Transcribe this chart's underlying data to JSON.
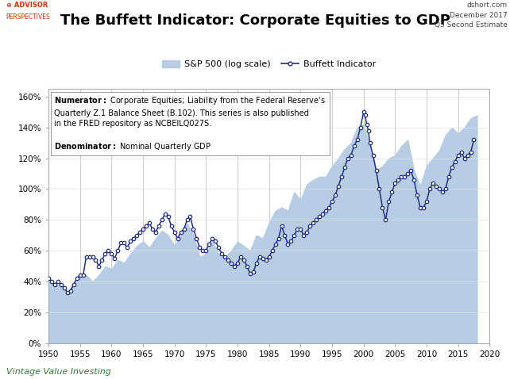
{
  "title": "The Buffett Indicator: Corporate Equities to GDP",
  "title_fontsize": 13,
  "subtitle_right": "dshort.com\nDecember 2017\nQ3 Second Estimate",
  "logo_text_top": "⊕ ADVISOR",
  "logo_text_bot": "PERSPECTIVES",
  "footer_text": "Vintage Value Investing",
  "legend_sp500": "S&P 500 (log scale)",
  "legend_buffett": "Buffett Indicator",
  "sp500_color": "#b8cce4",
  "buffett_color": "#1f3080",
  "vline_color": "#cccccc",
  "background_color": "#ffffff",
  "plot_bg_color": "#ffffff",
  "xlim": [
    1950,
    2020
  ],
  "ylim": [
    0,
    1.65
  ],
  "yticks": [
    0,
    0.2,
    0.4,
    0.6,
    0.8,
    1.0,
    1.2,
    1.4,
    1.6
  ],
  "ytick_labels": [
    "0%",
    "20%",
    "40%",
    "60%",
    "80%",
    "100%",
    "120%",
    "140%",
    "160%"
  ],
  "xticks": [
    1950,
    1955,
    1960,
    1965,
    1970,
    1975,
    1980,
    1985,
    1990,
    1995,
    2000,
    2005,
    2010,
    2015,
    2020
  ],
  "vline_years": [
    1955,
    1960,
    1965,
    1970,
    1975,
    1980,
    1985,
    1990,
    1995,
    2000,
    2005,
    2010,
    2015
  ],
  "sp500_years": [
    1950,
    1951,
    1952,
    1953,
    1954,
    1955,
    1956,
    1957,
    1958,
    1959,
    1960,
    1961,
    1962,
    1963,
    1964,
    1965,
    1966,
    1967,
    1968,
    1969,
    1970,
    1971,
    1972,
    1973,
    1974,
    1975,
    1976,
    1977,
    1978,
    1979,
    1980,
    1981,
    1982,
    1983,
    1984,
    1985,
    1986,
    1987,
    1988,
    1989,
    1990,
    1991,
    1992,
    1993,
    1994,
    1995,
    1996,
    1997,
    1998,
    1999,
    2000,
    2001,
    2002,
    2003,
    2004,
    2005,
    2006,
    2007,
    2008,
    2009,
    2010,
    2011,
    2012,
    2013,
    2014,
    2015,
    2016,
    2017,
    2018
  ],
  "sp500_vals": [
    0.4,
    0.38,
    0.37,
    0.33,
    0.39,
    0.45,
    0.44,
    0.4,
    0.44,
    0.5,
    0.48,
    0.54,
    0.52,
    0.58,
    0.63,
    0.66,
    0.62,
    0.68,
    0.73,
    0.7,
    0.63,
    0.7,
    0.78,
    0.7,
    0.56,
    0.58,
    0.66,
    0.58,
    0.56,
    0.6,
    0.66,
    0.63,
    0.6,
    0.7,
    0.68,
    0.78,
    0.86,
    0.88,
    0.86,
    0.98,
    0.93,
    1.03,
    1.06,
    1.08,
    1.08,
    1.15,
    1.2,
    1.26,
    1.3,
    1.4,
    1.42,
    1.28,
    1.12,
    1.15,
    1.2,
    1.22,
    1.28,
    1.32,
    1.12,
    1.02,
    1.15,
    1.2,
    1.25,
    1.35,
    1.4,
    1.36,
    1.4,
    1.46,
    1.48
  ],
  "buffett_years": [
    1950,
    1950.5,
    1951,
    1951.5,
    1952,
    1952.5,
    1953,
    1953.5,
    1954,
    1954.5,
    1955,
    1955.5,
    1956,
    1956.5,
    1957,
    1957.5,
    1958,
    1958.5,
    1959,
    1959.5,
    1960,
    1960.5,
    1961,
    1961.5,
    1962,
    1962.5,
    1963,
    1963.5,
    1964,
    1964.5,
    1965,
    1965.5,
    1966,
    1966.5,
    1967,
    1967.5,
    1968,
    1968.5,
    1969,
    1969.5,
    1970,
    1970.5,
    1971,
    1971.5,
    1972,
    1972.5,
    1973,
    1973.5,
    1974,
    1974.5,
    1975,
    1975.5,
    1976,
    1976.5,
    1977,
    1977.5,
    1978,
    1978.5,
    1979,
    1979.5,
    1980,
    1980.5,
    1981,
    1981.5,
    1982,
    1982.5,
    1983,
    1983.5,
    1984,
    1984.5,
    1985,
    1985.5,
    1986,
    1986.5,
    1987,
    1987.5,
    1988,
    1988.5,
    1989,
    1989.5,
    1990,
    1990.5,
    1991,
    1991.5,
    1992,
    1992.5,
    1993,
    1993.5,
    1994,
    1994.5,
    1995,
    1995.5,
    1996,
    1996.5,
    1997,
    1997.5,
    1998,
    1998.5,
    1999,
    1999.5,
    2000,
    2000.25,
    2000.5,
    2000.75,
    2001,
    2001.5,
    2002,
    2002.5,
    2003,
    2003.5,
    2004,
    2004.5,
    2005,
    2005.5,
    2006,
    2006.5,
    2007,
    2007.5,
    2008,
    2008.5,
    2009,
    2009.5,
    2010,
    2010.5,
    2011,
    2011.5,
    2012,
    2012.5,
    2013,
    2013.5,
    2014,
    2014.5,
    2015,
    2015.5,
    2016,
    2016.5,
    2017,
    2017.5
  ],
  "buffett_vals": [
    0.42,
    0.4,
    0.38,
    0.4,
    0.38,
    0.36,
    0.33,
    0.34,
    0.38,
    0.42,
    0.44,
    0.44,
    0.56,
    0.56,
    0.56,
    0.54,
    0.5,
    0.54,
    0.58,
    0.6,
    0.58,
    0.55,
    0.6,
    0.65,
    0.65,
    0.62,
    0.66,
    0.68,
    0.7,
    0.72,
    0.74,
    0.76,
    0.78,
    0.74,
    0.72,
    0.76,
    0.8,
    0.84,
    0.82,
    0.76,
    0.72,
    0.68,
    0.72,
    0.74,
    0.8,
    0.82,
    0.74,
    0.68,
    0.62,
    0.6,
    0.6,
    0.64,
    0.68,
    0.66,
    0.62,
    0.58,
    0.56,
    0.54,
    0.52,
    0.5,
    0.52,
    0.56,
    0.54,
    0.5,
    0.45,
    0.46,
    0.52,
    0.56,
    0.55,
    0.54,
    0.56,
    0.6,
    0.64,
    0.68,
    0.76,
    0.7,
    0.64,
    0.66,
    0.7,
    0.74,
    0.74,
    0.7,
    0.72,
    0.76,
    0.78,
    0.8,
    0.82,
    0.84,
    0.86,
    0.88,
    0.92,
    0.96,
    1.02,
    1.08,
    1.14,
    1.2,
    1.22,
    1.28,
    1.32,
    1.4,
    1.5,
    1.48,
    1.42,
    1.38,
    1.3,
    1.22,
    1.12,
    1.0,
    0.88,
    0.8,
    0.92,
    0.98,
    1.04,
    1.06,
    1.08,
    1.08,
    1.1,
    1.12,
    1.06,
    0.96,
    0.88,
    0.88,
    0.92,
    1.0,
    1.04,
    1.02,
    1.0,
    0.98,
    1.0,
    1.08,
    1.14,
    1.18,
    1.22,
    1.24,
    1.2,
    1.22,
    1.24,
    1.32
  ]
}
